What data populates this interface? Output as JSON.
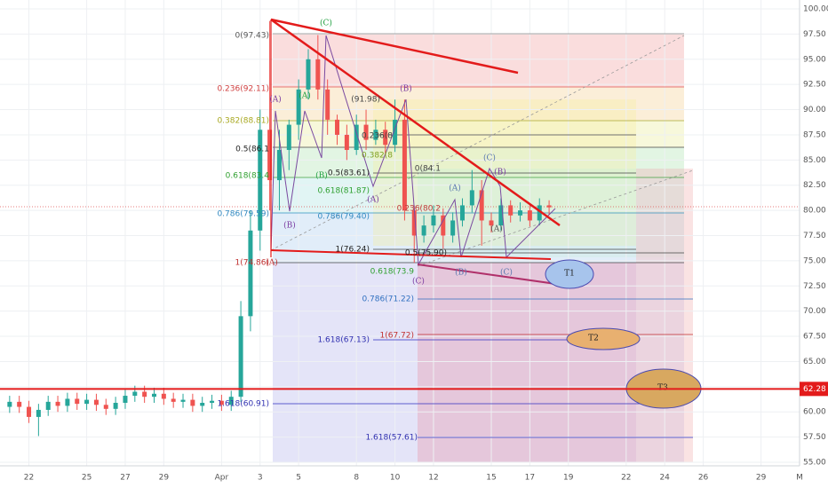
{
  "chart_data": {
    "type": "candlestick",
    "x": [
      21,
      21.5,
      22,
      22.5,
      23,
      23.5,
      24,
      24.5,
      25,
      25.5,
      26,
      26.5,
      27,
      27.5,
      28,
      28.5,
      29,
      29.5,
      30,
      30.5,
      31,
      31.5,
      32,
      32.5,
      33,
      33.5,
      34,
      34.5,
      35,
      35.5,
      36,
      36.5,
      37,
      37.5,
      38,
      38.5,
      39,
      39.5,
      40,
      40.5,
      41,
      41.5,
      42,
      42.5,
      43,
      43.5,
      44,
      44.5,
      45,
      45.5,
      46,
      46.5,
      47,
      47.5,
      48,
      48.5,
      49
    ],
    "open": [
      60.5,
      61.0,
      60.5,
      59.5,
      60.2,
      61.0,
      60.6,
      61.3,
      60.8,
      61.2,
      60.7,
      60.3,
      60.9,
      61.6,
      62.0,
      61.5,
      61.8,
      61.3,
      61.0,
      61.2,
      60.6,
      60.9,
      61.1,
      60.7,
      61.5,
      69.5,
      78.0,
      88.0,
      83.0,
      86.0,
      88.5,
      92.0,
      95.0,
      92.0,
      89.0,
      87.5,
      86.0,
      88.5,
      87.0,
      88.0,
      86.5,
      89.0,
      80.0,
      77.5,
      78.5,
      79.5,
      77.5,
      79.0,
      80.5,
      82.0,
      79.0,
      78.5,
      80.5,
      79.5,
      80.0,
      79.0,
      80.5
    ],
    "high": [
      61.6,
      61.6,
      61.1,
      60.8,
      61.6,
      61.6,
      61.9,
      61.9,
      61.8,
      61.8,
      61.3,
      61.5,
      62.2,
      62.6,
      62.6,
      62.4,
      62.4,
      61.9,
      61.8,
      61.8,
      61.5,
      61.7,
      61.7,
      62.1,
      71.0,
      80.0,
      90.0,
      98.8,
      88.0,
      89.0,
      93.0,
      96.0,
      97.4,
      93.0,
      89.5,
      88.5,
      89.5,
      90.0,
      89.0,
      88.8,
      91.0,
      91.0,
      80.5,
      79.5,
      80.5,
      80.2,
      79.8,
      81.2,
      84.0,
      83.0,
      79.8,
      81.2,
      81.0,
      80.8,
      80.5,
      81.2,
      81.0
    ],
    "low": [
      59.9,
      59.9,
      58.9,
      57.6,
      59.6,
      60.0,
      60.0,
      60.2,
      60.2,
      60.1,
      59.7,
      59.7,
      60.3,
      61.0,
      60.9,
      60.9,
      60.7,
      60.4,
      60.4,
      60.0,
      60.0,
      60.3,
      60.1,
      60.1,
      61.0,
      68.0,
      76.0,
      80.0,
      80.0,
      84.0,
      87.0,
      91.0,
      91.0,
      87.5,
      86.5,
      85.0,
      85.5,
      86.0,
      86.5,
      85.5,
      85.8,
      79.0,
      74.8,
      76.8,
      77.8,
      76.2,
      76.8,
      78.4,
      79.8,
      76.5,
      77.8,
      78.0,
      78.8,
      78.9,
      78.4,
      78.5,
      79.6
    ],
    "close": [
      61.0,
      60.5,
      59.5,
      60.2,
      61.0,
      60.6,
      61.3,
      60.8,
      61.2,
      60.7,
      60.3,
      60.9,
      61.6,
      62.0,
      61.5,
      61.8,
      61.3,
      61.0,
      61.2,
      60.6,
      60.9,
      61.1,
      60.7,
      61.5,
      69.5,
      78.0,
      88.0,
      83.0,
      86.0,
      88.5,
      92.0,
      95.0,
      92.0,
      89.0,
      87.5,
      86.0,
      88.5,
      87.0,
      88.0,
      86.5,
      89.0,
      80.0,
      77.5,
      78.5,
      79.5,
      77.5,
      79.0,
      80.5,
      82.0,
      79.0,
      78.5,
      80.5,
      79.5,
      80.0,
      79.0,
      80.5,
      80.3
    ],
    "up_color": "#26a69a",
    "down_color": "#ef5350",
    "xlim": [
      20.5,
      62
    ],
    "xticks": [
      {
        "value": 22,
        "label": "22"
      },
      {
        "value": 25,
        "label": "25"
      },
      {
        "value": 27,
        "label": "27"
      },
      {
        "value": 29,
        "label": "29"
      },
      {
        "value": 32,
        "label": "Apr"
      },
      {
        "value": 34,
        "label": "3"
      },
      {
        "value": 36,
        "label": "5"
      },
      {
        "value": 39,
        "label": "8"
      },
      {
        "value": 41,
        "label": "10"
      },
      {
        "value": 43,
        "label": "12"
      },
      {
        "value": 46,
        "label": "15"
      },
      {
        "value": 48,
        "label": "17"
      },
      {
        "value": 50,
        "label": "19"
      },
      {
        "value": 53,
        "label": "22"
      },
      {
        "value": 55,
        "label": "24"
      },
      {
        "value": 57,
        "label": "26"
      },
      {
        "value": 60,
        "label": "29"
      },
      {
        "value": 62,
        "label": "M"
      }
    ],
    "ylim": [
      55,
      100
    ],
    "yticks": [
      {
        "value": 55,
        "label": "55.00"
      },
      {
        "value": 57.5,
        "label": "57.50"
      },
      {
        "value": 60,
        "label": "60.00"
      },
      {
        "value": 62.5,
        "label": "62.50"
      },
      {
        "value": 65,
        "label": "65.00"
      },
      {
        "value": 67.5,
        "label": "67.50"
      },
      {
        "value": 70,
        "label": "70.00"
      },
      {
        "value": 72.5,
        "label": "72.50"
      },
      {
        "value": 75,
        "label": "75.00"
      },
      {
        "value": 77.5,
        "label": "77.50"
      },
      {
        "value": 80,
        "label": "80.00"
      },
      {
        "value": 82.5,
        "label": "82.50"
      },
      {
        "value": 85,
        "label": "85.00"
      },
      {
        "value": 87.5,
        "label": "87.50"
      },
      {
        "value": 90,
        "label": "90.00"
      },
      {
        "value": 92.5,
        "label": "92.50"
      },
      {
        "value": 95,
        "label": "95.00"
      },
      {
        "value": 97.5,
        "label": "97.50"
      },
      {
        "value": 100,
        "label": "100.00"
      }
    ],
    "grid": true,
    "price_line": 62.28,
    "price_line_color": "#e31b1b",
    "annotations": [
      "0(97.43)",
      "0.236(92.11)",
      "0.382(88.81)",
      "0.5(86.1",
      "0.618(83.4",
      "0.786(79.59)",
      "1(74.86)",
      "1.618(60.91)",
      "(91.98)",
      "0.236(8",
      "0.382(8",
      "0.5(83.61)",
      "0.618(81.87)",
      "0.786(79.40)",
      "1(76.24)",
      "0(84.1",
      "0.236(80.2",
      "0.5(75.90)",
      "0.618(73.9",
      "0.786(71.22)",
      "1(67.72)",
      "1.618(67.13)",
      "1.618(57.61)",
      "(A)",
      "(B)",
      "(A)",
      "(B)",
      "(C)",
      "(B)",
      "(A)",
      "(C)",
      "(A)",
      "(B)",
      "(C)",
      "(B)",
      "(A)",
      "(C)",
      "(A)",
      "T1",
      "T2",
      "T3"
    ]
  }
}
